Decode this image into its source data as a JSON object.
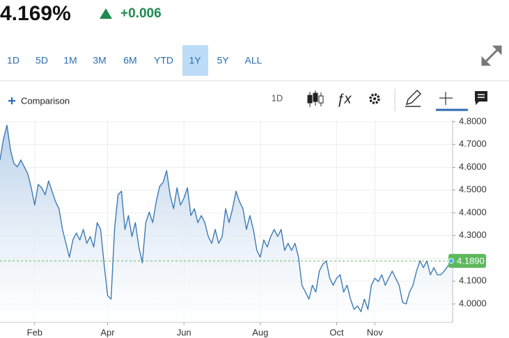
{
  "header": {
    "price": "4.169%",
    "change": "+0.006"
  },
  "tabs": [
    "1D",
    "5D",
    "1M",
    "3M",
    "6M",
    "YTD",
    "1Y",
    "5Y",
    "ALL"
  ],
  "selected_tab": "1Y",
  "toolbar": {
    "comparison": "Comparison",
    "interval": "1D"
  },
  "chart_data": {
    "type": "area",
    "color": "#3d7ab5",
    "grid": true,
    "ylim": [
      3.92,
      4.81
    ],
    "yticks": [
      {
        "value": 4.0,
        "label": "4.0000"
      },
      {
        "value": 4.1,
        "label": "4.1000"
      },
      {
        "value": 4.2,
        "label": "4.2000"
      },
      {
        "value": 4.3,
        "label": "4.3000"
      },
      {
        "value": 4.4,
        "label": "4.4000"
      },
      {
        "value": 4.5,
        "label": "4.5000"
      },
      {
        "value": 4.6,
        "label": "4.6000"
      },
      {
        "value": 4.7,
        "label": "4.7000"
      },
      {
        "value": 4.8,
        "label": "4.8000"
      }
    ],
    "categories": [
      null,
      null,
      null,
      null,
      null,
      null,
      null,
      null,
      null,
      null,
      "Feb",
      null,
      null,
      null,
      null,
      null,
      null,
      null,
      null,
      null,
      null,
      null,
      null,
      null,
      null,
      null,
      null,
      null,
      null,
      null,
      null,
      "Apr",
      null,
      null,
      null,
      null,
      null,
      null,
      null,
      null,
      null,
      null,
      null,
      null,
      null,
      null,
      null,
      null,
      null,
      null,
      null,
      null,
      null,
      "Jun",
      null,
      null,
      null,
      null,
      null,
      null,
      null,
      null,
      null,
      null,
      null,
      null,
      null,
      null,
      null,
      null,
      null,
      null,
      null,
      null,
      null,
      "Aug",
      null,
      null,
      null,
      null,
      null,
      null,
      null,
      null,
      null,
      null,
      null,
      null,
      null,
      null,
      null,
      null,
      null,
      null,
      null,
      null,
      null,
      "Oct",
      null,
      null,
      null,
      null,
      null,
      null,
      null,
      null,
      null,
      null,
      "Nov",
      null,
      null,
      null,
      null,
      null,
      null,
      null,
      null,
      null,
      null,
      null,
      null,
      null,
      null,
      null,
      null,
      null,
      null,
      null,
      null,
      null,
      null
    ],
    "values": [
      4.632,
      4.724,
      4.785,
      4.678,
      4.617,
      4.602,
      4.632,
      4.602,
      4.571,
      4.51,
      4.434,
      4.525,
      4.51,
      4.479,
      4.54,
      4.495,
      4.449,
      4.418,
      4.327,
      4.266,
      4.205,
      4.281,
      4.311,
      4.281,
      4.327,
      4.266,
      4.296,
      4.25,
      4.357,
      4.327,
      4.174,
      4.037,
      4.021,
      4.327,
      4.479,
      4.495,
      4.327,
      4.388,
      4.296,
      4.357,
      4.25,
      4.18,
      4.357,
      4.403,
      4.357,
      4.449,
      4.516,
      4.534,
      4.586,
      4.479,
      4.418,
      4.51,
      4.434,
      4.464,
      4.51,
      4.388,
      4.418,
      4.357,
      4.388,
      4.357,
      4.296,
      4.266,
      4.327,
      4.266,
      4.296,
      4.418,
      4.357,
      4.418,
      4.495,
      4.449,
      4.418,
      4.327,
      4.388,
      4.327,
      4.235,
      4.205,
      4.281,
      4.25,
      4.296,
      4.327,
      4.296,
      4.327,
      4.235,
      4.266,
      4.235,
      4.266,
      4.205,
      4.082,
      4.052,
      4.021,
      4.082,
      4.052,
      4.144,
      4.174,
      4.189,
      4.113,
      4.082,
      4.113,
      4.128,
      4.052,
      4.082,
      4.021,
      3.976,
      3.991,
      3.966,
      4.021,
      3.976,
      4.082,
      4.113,
      4.098,
      4.128,
      4.082,
      4.113,
      4.144,
      4.113,
      4.082,
      4.006,
      4.0,
      4.052,
      4.082,
      4.144,
      4.189,
      4.159,
      4.189,
      4.128,
      4.159,
      4.128,
      4.128,
      4.144,
      4.165,
      4.189
    ],
    "reference_line": {
      "value": 4.189,
      "label": "4.1890",
      "color": "#5cb85c"
    }
  }
}
